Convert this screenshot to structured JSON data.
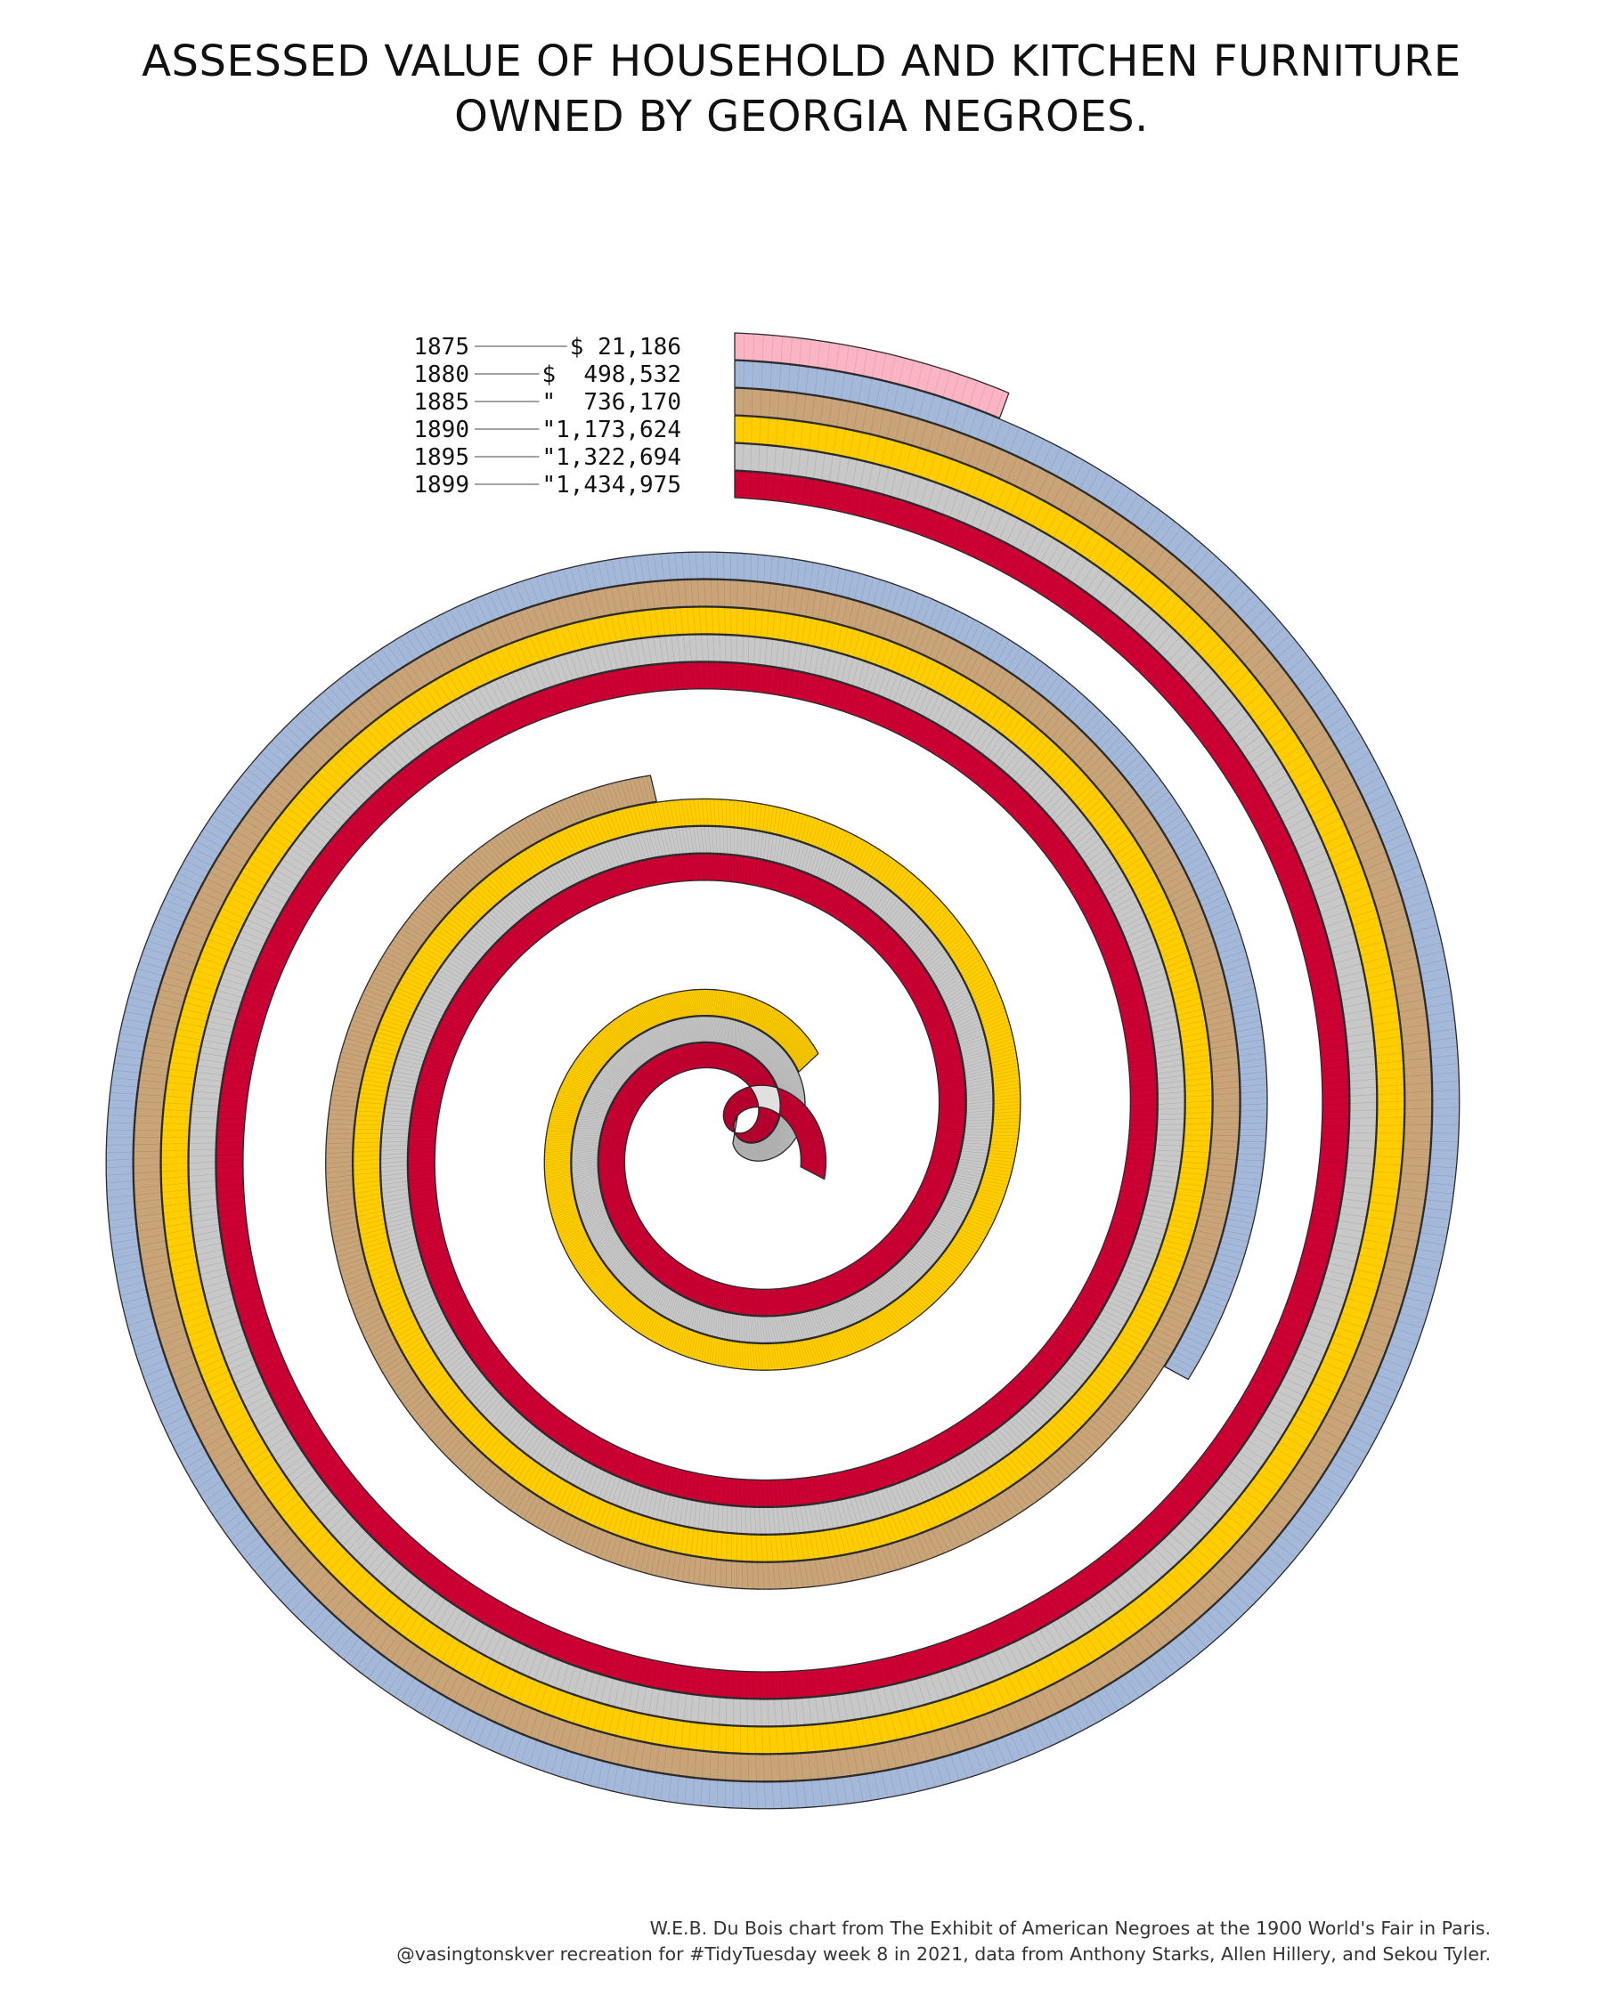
{
  "title_lines": [
    "ASSESSED VALUE OF HOUSEHOLD AND KITCHEN FURNITURE",
    "OWNED BY GEORGIA NEGROES."
  ],
  "caption_lines": [
    "W.E.B. Du Bois chart from The Exhibit of American Negroes at the 1900 World's Fair in Paris.",
    "@vasingtonskver recreation for #TidyTuesday week 8 in 2021, data from Anthony Starks, Allen Hillery, and Sekou Tyler."
  ],
  "chart_data": {
    "type": "spiral",
    "title": "ASSESSED VALUE OF HOUSEHOLD AND KITCHEN FURNITURE OWNED BY GEORGIA NEGROES.",
    "series": [
      {
        "year": "1875",
        "value": 21186,
        "label": "$ 21,186",
        "color": "#FBB4C4"
      },
      {
        "year": "1880",
        "value": 498532,
        "label": "$  498,532",
        "color": "#A4B8D9"
      },
      {
        "year": "1885",
        "value": 736170,
        "label": "\"  736,170",
        "color": "#C9A478"
      },
      {
        "year": "1890",
        "value": 1173624,
        "label": "\"1,173,624",
        "color": "#FFCD00"
      },
      {
        "year": "1895",
        "value": 1322694,
        "label": "\"1,322,694",
        "color": "#C8C8C8"
      },
      {
        "year": "1899",
        "value": 1434975,
        "label": "\"1,434,975",
        "color": "#CC0033"
      }
    ],
    "legend_placement": "top-left of spiral start"
  }
}
